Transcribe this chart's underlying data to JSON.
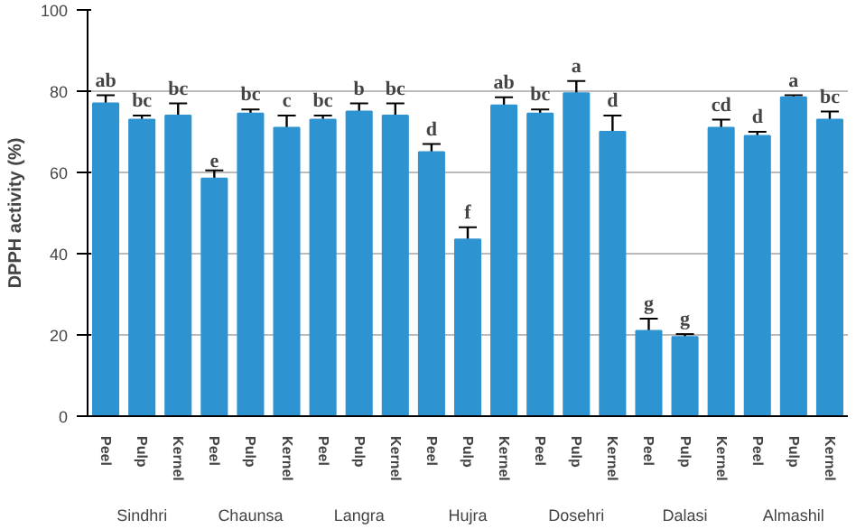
{
  "chart_data": {
    "type": "bar",
    "ylabel": "DPPH activity (%)",
    "categories": [
      "Peel",
      "Pulp",
      "Kernel",
      "Peel",
      "Pulp",
      "Kernel",
      "Peel",
      "Pulp",
      "Kernel",
      "Peel",
      "Pulp",
      "Kernel",
      "Peel",
      "Pulp",
      "Kernel",
      "Peel",
      "Pulp",
      "Kernel",
      "Peel",
      "Pulp",
      "Kernel"
    ],
    "values": [
      77,
      73,
      74,
      58.5,
      74.5,
      71,
      73,
      75,
      74,
      65,
      43.5,
      76.5,
      74.5,
      79.5,
      70,
      21,
      19.5,
      71,
      69,
      78.5,
      73
    ],
    "errors": [
      2,
      1,
      3,
      2,
      1,
      3,
      1,
      2,
      3,
      2,
      3,
      2,
      1,
      3,
      4,
      3,
      0.7,
      2,
      1,
      0.5,
      2
    ],
    "value_labels": [
      "ab",
      "bc",
      "bc",
      "e",
      "bc",
      "c",
      "bc",
      "b",
      "bc",
      "d",
      "f",
      "ab",
      "bc",
      "a",
      "d",
      "g",
      "g",
      "cd",
      "d",
      "a",
      "bc"
    ],
    "annotations": [
      "Sindhri",
      "Chaunsa",
      "Langra",
      "Hujra",
      "Dosehri",
      "Dalasi",
      "Almashil"
    ],
    "color": "#2e93d1",
    "ylim": [
      0,
      100
    ],
    "yticks": [
      0,
      20,
      40,
      60,
      80,
      100
    ],
    "grid": "y"
  }
}
